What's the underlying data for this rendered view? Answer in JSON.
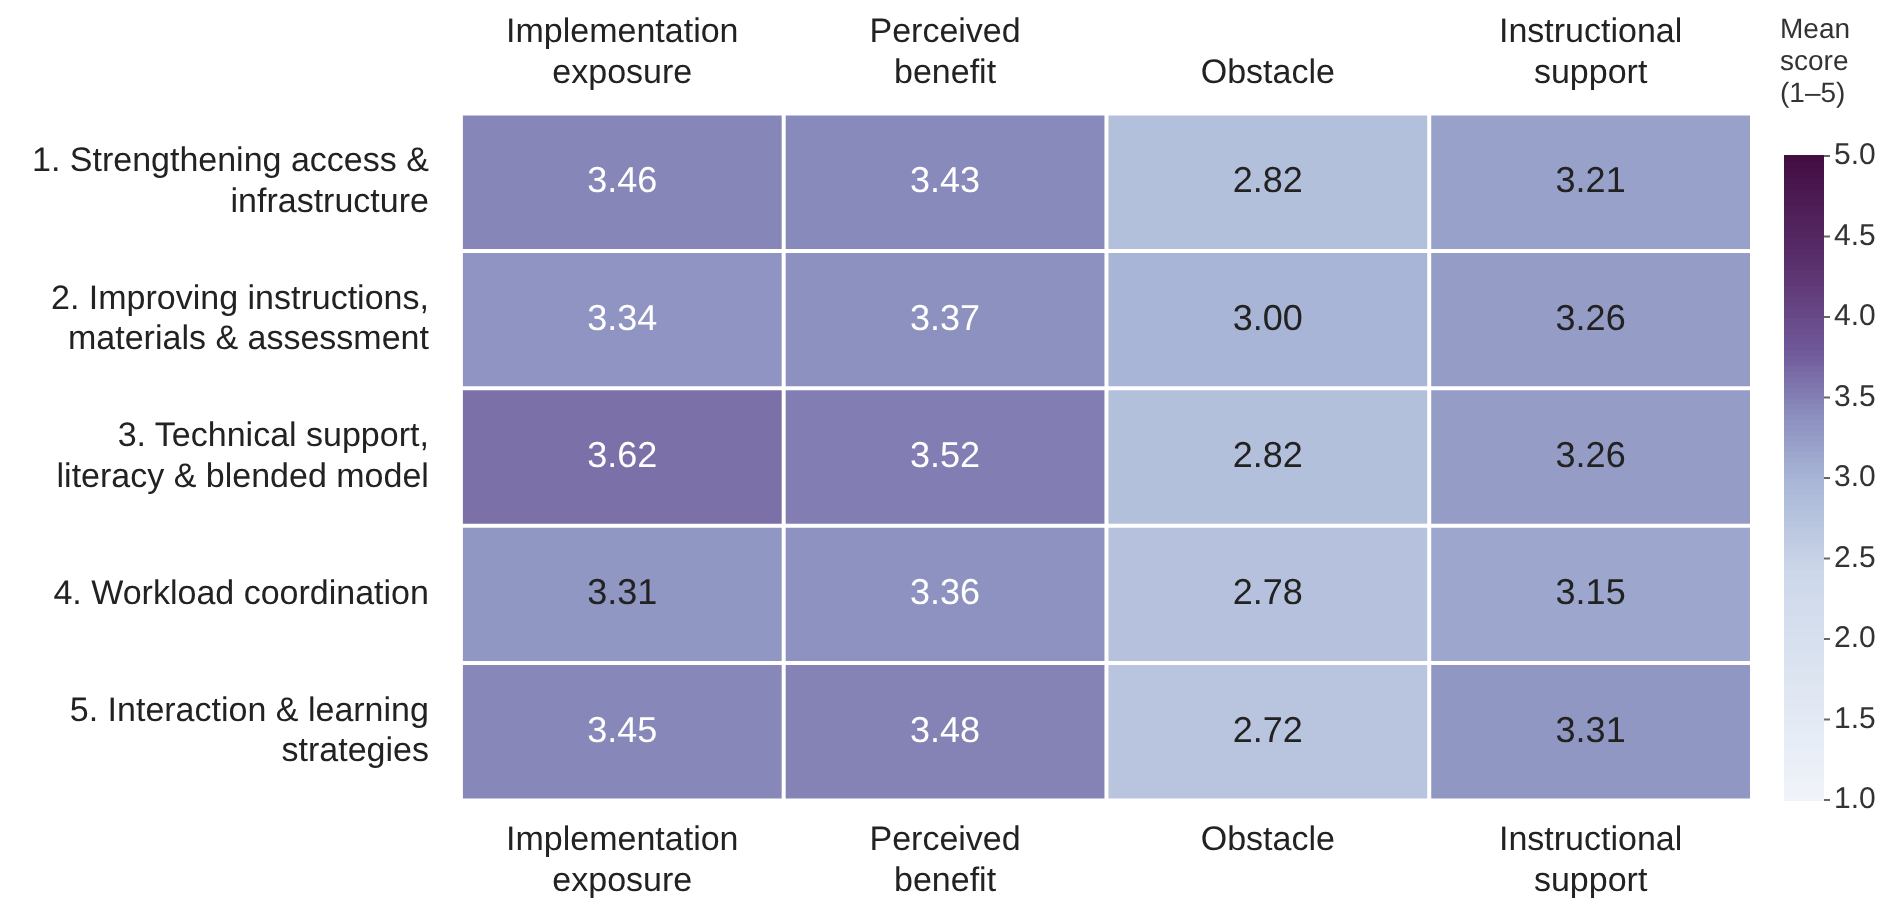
{
  "chart_data": {
    "type": "heatmap",
    "categories": [
      "Implementation exposure",
      "Perceived benefit",
      "Obstacle",
      "Instructional support"
    ],
    "y_categories": [
      "1. Strengthening access & infrastructure",
      "2. Improving instructions, materials & assessment",
      "3. Technical support, literacy & blended model",
      "4. Workload coordination",
      "5. Interaction & learning strategies"
    ],
    "cells": [
      [
        3.46,
        3.43,
        2.82,
        3.21
      ],
      [
        3.34,
        3.37,
        3.0,
        3.26
      ],
      [
        3.62,
        3.52,
        2.82,
        3.26
      ],
      [
        3.31,
        3.36,
        2.78,
        3.15
      ],
      [
        3.45,
        3.48,
        2.72,
        3.31
      ]
    ],
    "cell_labels": [
      [
        "3.46",
        "3.43",
        "2.82",
        "3.21"
      ],
      [
        "3.34",
        "3.37",
        "3.00",
        "3.26"
      ],
      [
        "3.62",
        "3.52",
        "2.82",
        "3.26"
      ],
      [
        "3.31",
        "3.36",
        "2.78",
        "3.15"
      ],
      [
        "3.45",
        "3.48",
        "2.72",
        "3.31"
      ]
    ],
    "clabel": "Mean score (1–5)",
    "clim": [
      1,
      5
    ],
    "cticks": [
      {
        "value": 1,
        "label": "1.0"
      },
      {
        "value": 1.5,
        "label": "1.5"
      },
      {
        "value": 2,
        "label": "2.0"
      },
      {
        "value": 2.5,
        "label": "2.5"
      },
      {
        "value": 3,
        "label": "3.0"
      },
      {
        "value": 3.5,
        "label": "3.5"
      },
      {
        "value": 4,
        "label": "4.0"
      },
      {
        "value": 4.5,
        "label": "4.5"
      },
      {
        "value": 5,
        "label": "5.0"
      }
    ],
    "data_labels": true
  }
}
